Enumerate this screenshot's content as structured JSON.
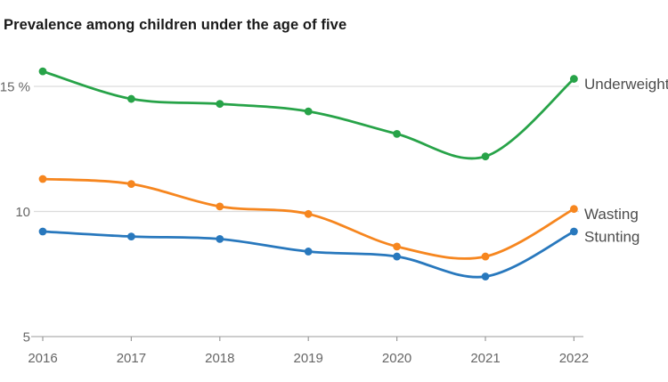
{
  "title": "Prevalence among children under the age of five",
  "chart_data": {
    "type": "line",
    "title": "Prevalence among children under the age of five",
    "xlabel": "",
    "ylabel": "",
    "unit": "%",
    "x": [
      2016,
      2017,
      2018,
      2019,
      2020,
      2021,
      2022
    ],
    "x_tick_labels": [
      "2016",
      "2017",
      "2018",
      "2019",
      "2020",
      "2021",
      "2022"
    ],
    "series": [
      {
        "name": "Underweight",
        "color": "#27a348",
        "values": [
          15.6,
          14.5,
          14.3,
          14.0,
          13.1,
          12.2,
          15.3
        ]
      },
      {
        "name": "Wasting",
        "color": "#f6861f",
        "values": [
          11.3,
          11.1,
          10.2,
          9.9,
          8.6,
          8.2,
          10.1
        ]
      },
      {
        "name": "Stunting",
        "color": "#2878bd",
        "values": [
          9.2,
          9.0,
          8.9,
          8.4,
          8.2,
          7.4,
          9.2
        ]
      }
    ],
    "yticks": [
      {
        "value": 15,
        "label": "15 %"
      },
      {
        "value": 10,
        "label": "10"
      },
      {
        "value": 5,
        "label": "5"
      }
    ],
    "ylim": [
      5,
      16.5
    ],
    "grid": "horizontal",
    "legend_position": "right-of-line-ends",
    "markers": "circle-at-each-year"
  },
  "colors": {
    "background": "#ffffff",
    "title_text": "#1a1a1a",
    "gridline": "#dcdcdc",
    "axis_line": "#9b9b9b",
    "tick_label": "#666666",
    "series_label": "#4d4d4d"
  }
}
